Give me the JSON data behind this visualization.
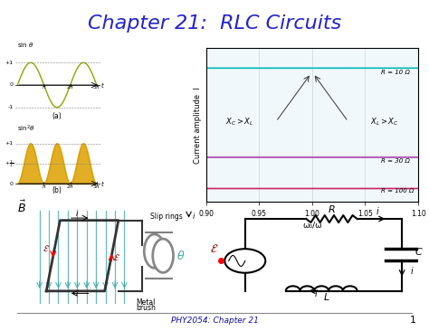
{
  "title": "Chapter 21:  RLC Circuits",
  "title_color": "#2222CC",
  "title_fontsize": 16,
  "bg_color": "#FFFFFF",
  "footer_text": "PHY2054: Chapter 21",
  "footer_number": "1",
  "resonance_xlabel": "ω₀/ω",
  "resonance_ylabel": "Current amplitude  I",
  "resonance_xticks": [
    0.9,
    0.95,
    1.0,
    1.05,
    1.1
  ],
  "resonance_curves": [
    {
      "R": 10,
      "color": "#00B8B8",
      "label": "R = 10 Ω"
    },
    {
      "R": 30,
      "color": "#AA44AA",
      "label": "R = 30 Ω"
    },
    {
      "R": 100,
      "color": "#CC2266",
      "label": "R = 100 Ω"
    }
  ],
  "annot_left": "$X_C > X_L$",
  "annot_right": "$X_L > X_C$",
  "sine_color": "#88A800",
  "sine2_color": "#DDA000",
  "grid_color": "#CCCCCC",
  "panel_bg": "#F0F8FC",
  "teal_field": "#44AAAA",
  "coil_color": "#333333",
  "ring_color": "#888888"
}
